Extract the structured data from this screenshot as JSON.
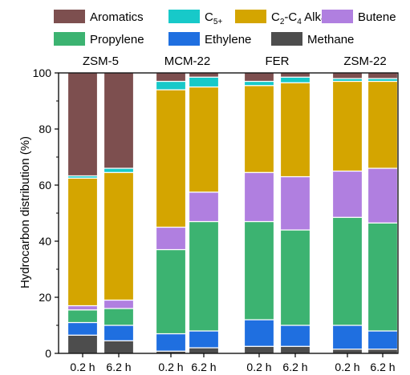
{
  "chart_data": {
    "type": "bar",
    "stacked": true,
    "ylabel": "Hydrocarbon distribution (%)",
    "ylim": [
      0,
      100
    ],
    "yticks": [
      0,
      20,
      40,
      60,
      80,
      100
    ],
    "legend": {
      "placement": "top",
      "entries": [
        {
          "key": "aromatics",
          "label": "Aromatics"
        },
        {
          "key": "c5",
          "label": "C",
          "sub": "5+"
        },
        {
          "key": "alkanes",
          "label_parts": [
            "C",
            "2",
            "-C",
            "4",
            " Alkanes"
          ]
        },
        {
          "key": "butene",
          "label": "Butene"
        },
        {
          "key": "propylene",
          "label": "Propylene"
        },
        {
          "key": "ethylene",
          "label": "Ethylene"
        },
        {
          "key": "methane",
          "label": "Methane"
        }
      ]
    },
    "stack_order": [
      "methane",
      "ethylene",
      "propylene",
      "butene",
      "alkanes",
      "c5",
      "aromatics"
    ],
    "colors": {
      "methane": "#4d4d4d",
      "ethylene": "#1f6fe0",
      "propylene": "#3cb371",
      "butene": "#b07fe0",
      "alkanes": "#d4a500",
      "c5": "#17c9c9",
      "aromatics": "#7d4f4f"
    },
    "groups": [
      {
        "name": "ZSM-5",
        "bars": [
          {
            "x": "0.2 h",
            "values": {
              "methane": 6.5,
              "ethylene": 4.5,
              "propylene": 4.5,
              "butene": 1.5,
              "alkanes": 45.5,
              "c5": 0.8,
              "aromatics": 36.7
            }
          },
          {
            "x": "6.2 h",
            "values": {
              "methane": 4.5,
              "ethylene": 5.5,
              "propylene": 6.0,
              "butene": 3.0,
              "alkanes": 45.5,
              "c5": 1.5,
              "aromatics": 34.0
            }
          }
        ]
      },
      {
        "name": "MCM-22",
        "bars": [
          {
            "x": "0.2 h",
            "values": {
              "methane": 0.8,
              "ethylene": 6.2,
              "propylene": 30.0,
              "butene": 8.0,
              "alkanes": 49.0,
              "c5": 3.0,
              "aromatics": 3.0
            }
          },
          {
            "x": "6.2 h",
            "values": {
              "methane": 2.0,
              "ethylene": 6.0,
              "propylene": 39.0,
              "butene": 10.5,
              "alkanes": 37.5,
              "c5": 3.5,
              "aromatics": 1.5
            }
          }
        ]
      },
      {
        "name": "FER",
        "bars": [
          {
            "x": "0.2 h",
            "values": {
              "methane": 2.5,
              "ethylene": 9.5,
              "propylene": 35.0,
              "butene": 17.5,
              "alkanes": 31.0,
              "c5": 1.5,
              "aromatics": 3.0
            }
          },
          {
            "x": "6.2 h",
            "values": {
              "methane": 2.5,
              "ethylene": 7.5,
              "propylene": 34.0,
              "butene": 19.0,
              "alkanes": 33.5,
              "c5": 2.0,
              "aromatics": 1.5
            }
          }
        ]
      },
      {
        "name": "ZSM-22",
        "bars": [
          {
            "x": "0.2 h",
            "values": {
              "methane": 1.5,
              "ethylene": 8.5,
              "propylene": 38.5,
              "butene": 16.5,
              "alkanes": 32.0,
              "c5": 1.0,
              "aromatics": 2.0
            }
          },
          {
            "x": "6.2 h",
            "values": {
              "methane": 1.5,
              "ethylene": 6.5,
              "propylene": 38.5,
              "butene": 19.5,
              "alkanes": 31.0,
              "c5": 1.0,
              "aromatics": 2.0
            }
          }
        ]
      }
    ]
  }
}
